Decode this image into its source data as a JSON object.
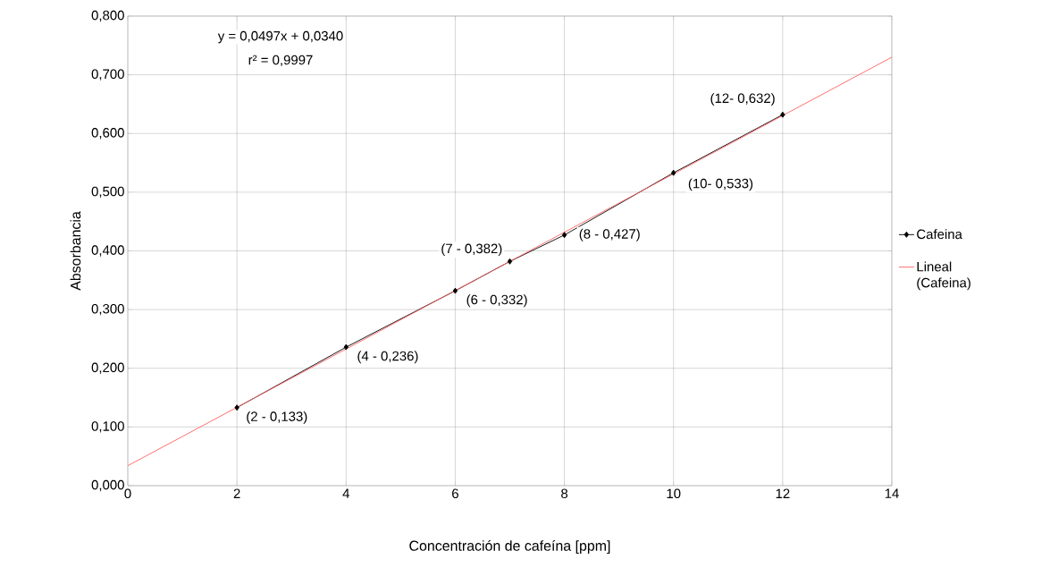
{
  "chart_data": {
    "type": "line",
    "xlabel": "Concentración de cafeína  [ppm]",
    "ylabel": "Absorbancia",
    "series": [
      {
        "name": "Cafeina",
        "color": "#000000",
        "marker": "diamond",
        "x": [
          2,
          4,
          6,
          7,
          8,
          10,
          12
        ],
        "values": [
          0.133,
          0.236,
          0.332,
          0.382,
          0.427,
          0.533,
          0.632
        ]
      },
      {
        "name": "Lineal (Cafeina)",
        "color": "#ff6060",
        "marker": "none",
        "x": [
          0,
          14
        ],
        "values": [
          0.034,
          0.73
        ]
      }
    ],
    "annotations": [
      {
        "text": "(2 - 0,133)",
        "x": 2,
        "y": 0.133
      },
      {
        "text": "(4 - 0,236)",
        "x": 4,
        "y": 0.236
      },
      {
        "text": "(6 - 0,332)",
        "x": 6,
        "y": 0.332
      },
      {
        "text": "(7 - 0,382)",
        "x": 7,
        "y": 0.382
      },
      {
        "text": "(8 - 0,427)",
        "x": 8,
        "y": 0.427
      },
      {
        "text": "(10- 0,533)",
        "x": 10,
        "y": 0.533
      },
      {
        "text": "(12- 0,632)",
        "x": 12,
        "y": 0.632
      },
      "y = 0,0497x + 0,0340",
      "r² = 0,9997"
    ],
    "xlim": [
      0,
      14
    ],
    "xticks": [
      0,
      2,
      4,
      6,
      8,
      10,
      12,
      14
    ],
    "ylim": [
      0,
      0.8
    ],
    "yticks": [
      {
        "value": 0,
        "label": "0,000"
      },
      {
        "value": 0.1,
        "label": "0,100"
      },
      {
        "value": 0.2,
        "label": "0,200"
      },
      {
        "value": 0.3,
        "label": "0,300"
      },
      {
        "value": 0.4,
        "label": "0,400"
      },
      {
        "value": 0.5,
        "label": "0,500"
      },
      {
        "value": 0.6,
        "label": "0,600"
      },
      {
        "value": 0.7,
        "label": "0,700"
      },
      {
        "value": 0.8,
        "label": "0,800"
      }
    ],
    "grid": true,
    "legend": "right",
    "line_style": "solid"
  }
}
